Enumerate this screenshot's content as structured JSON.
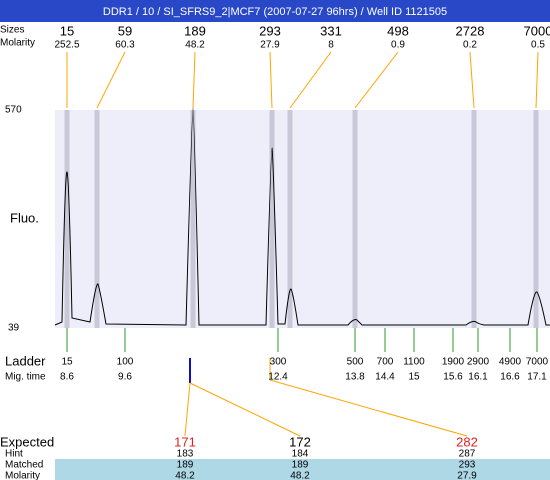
{
  "header": {
    "title": "DDR1 / 10 / SI_SFRS9_2|MCF7 (2007-07-27 96hrs) / Well ID 1121505"
  },
  "peaks": {
    "labels": [
      "Sizes",
      "Molarity"
    ],
    "sizes": [
      15,
      59,
      189,
      293,
      331,
      498,
      2728,
      7000
    ],
    "molarities": [
      252.5,
      60.3,
      48.2,
      27.9,
      8,
      0.9,
      0.2,
      0.5
    ]
  },
  "plot": {
    "y_axis_label": "Fluo.",
    "y_max": "570",
    "y_min": "39"
  },
  "ladder": {
    "labels": [
      "Ladder",
      "Mig. time"
    ],
    "sizes": [
      15,
      100,
      300,
      500,
      700,
      1100,
      1900,
      2900,
      4900,
      7000
    ],
    "migration_times": [
      8.6,
      9.6,
      12.4,
      13.8,
      14.4,
      15,
      15.6,
      16.1,
      16.6,
      17.1
    ]
  },
  "matches": {
    "labels": [
      "Expected",
      "Hint",
      "Matched",
      "Molarity"
    ],
    "columns": [
      {
        "expected": 171,
        "color": "#e02020",
        "hint": 183,
        "matched": 189,
        "molarity": 48.2
      },
      {
        "expected": 172,
        "color": "#000000",
        "hint": 184,
        "matched": 189,
        "molarity": 48.2
      },
      {
        "expected": 282,
        "color": "#e02020",
        "hint": 287,
        "matched": 293,
        "molarity": 27.9
      }
    ]
  }
}
